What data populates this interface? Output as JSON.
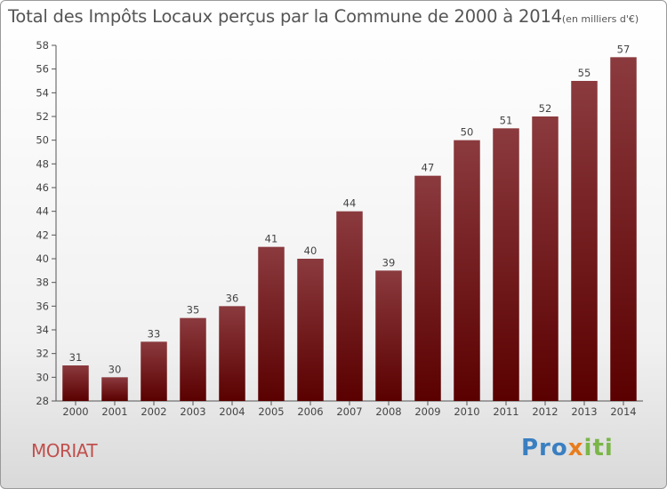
{
  "title": {
    "main": "Total des Impôts Locaux perçus par la Commune de 2000 à 2014",
    "unit": "(en milliers d'€)"
  },
  "commune": "MORIAT",
  "logo": {
    "part1": "Pro",
    "part2": "x",
    "part3": "iti"
  },
  "colors": {
    "bar_top": "#8b3a3e",
    "bar_bottom": "#5a0000",
    "commune": "#c0504d"
  },
  "chart_data": {
    "type": "bar",
    "title": "Total des Impôts Locaux perçus par la Commune de 2000 à 2014",
    "unit": "(en milliers d'€)",
    "xlabel": "",
    "ylabel": "",
    "categories": [
      "2000",
      "2001",
      "2002",
      "2003",
      "2004",
      "2005",
      "2006",
      "2007",
      "2008",
      "2009",
      "2010",
      "2011",
      "2012",
      "2013",
      "2014"
    ],
    "values": [
      31,
      30,
      33,
      35,
      36,
      41,
      40,
      44,
      39,
      47,
      50,
      51,
      52,
      55,
      57
    ],
    "ylim": [
      28,
      58
    ],
    "yticks": [
      28,
      30,
      32,
      34,
      36,
      38,
      40,
      42,
      44,
      46,
      48,
      50,
      52,
      54,
      56,
      58
    ],
    "grid": false
  }
}
